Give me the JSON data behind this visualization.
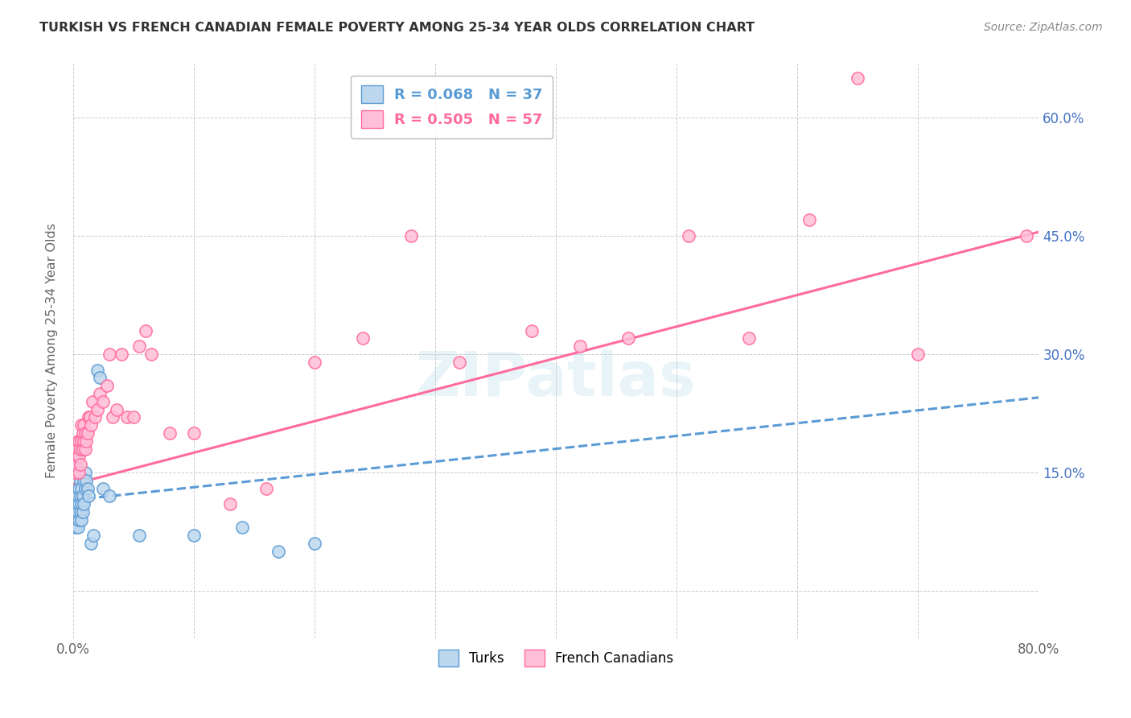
{
  "title": "TURKISH VS FRENCH CANADIAN FEMALE POVERTY AMONG 25-34 YEAR OLDS CORRELATION CHART",
  "source": "Source: ZipAtlas.com",
  "ylabel": "Female Poverty Among 25-34 Year Olds",
  "xmin": 0.0,
  "xmax": 0.8,
  "ymin": -0.06,
  "ymax": 0.67,
  "xticks": [
    0.0,
    0.1,
    0.2,
    0.3,
    0.4,
    0.5,
    0.6,
    0.7,
    0.8
  ],
  "xtick_labels": [
    "0.0%",
    "",
    "",
    "",
    "",
    "",
    "",
    "",
    "80.0%"
  ],
  "yticks": [
    0.0,
    0.15,
    0.3,
    0.45,
    0.6
  ],
  "right_ytick_labels": [
    "",
    "15.0%",
    "30.0%",
    "45.0%",
    "60.0%"
  ],
  "turks_R": 0.068,
  "turks_N": 37,
  "french_R": 0.505,
  "french_N": 57,
  "turk_color": "#5B9BD5",
  "turk_fill": "#BDD7EE",
  "french_color": "#FF6B9D",
  "french_fill": "#FFBFD8",
  "watermark": "ZIPatlas",
  "turk_line_x0": 0.0,
  "turk_line_y0": 0.115,
  "turk_line_x1": 0.8,
  "turk_line_y1": 0.245,
  "french_line_x0": 0.0,
  "french_line_y0": 0.135,
  "french_line_x1": 0.8,
  "french_line_y1": 0.455,
  "turks_x": [
    0.001,
    0.002,
    0.002,
    0.003,
    0.003,
    0.004,
    0.004,
    0.004,
    0.005,
    0.005,
    0.005,
    0.006,
    0.006,
    0.006,
    0.007,
    0.007,
    0.007,
    0.008,
    0.008,
    0.009,
    0.009,
    0.01,
    0.01,
    0.011,
    0.012,
    0.013,
    0.015,
    0.017,
    0.02,
    0.022,
    0.025,
    0.03,
    0.055,
    0.1,
    0.14,
    0.17,
    0.2
  ],
  "turks_y": [
    0.1,
    0.09,
    0.08,
    0.11,
    0.1,
    0.08,
    0.1,
    0.12,
    0.09,
    0.11,
    0.13,
    0.1,
    0.12,
    0.14,
    0.09,
    0.11,
    0.13,
    0.1,
    0.12,
    0.11,
    0.14,
    0.13,
    0.15,
    0.14,
    0.13,
    0.12,
    0.06,
    0.07,
    0.28,
    0.27,
    0.13,
    0.12,
    0.07,
    0.07,
    0.08,
    0.05,
    0.06
  ],
  "french_x": [
    0.001,
    0.002,
    0.002,
    0.003,
    0.003,
    0.004,
    0.004,
    0.005,
    0.005,
    0.005,
    0.006,
    0.006,
    0.007,
    0.007,
    0.008,
    0.008,
    0.009,
    0.009,
    0.01,
    0.01,
    0.011,
    0.012,
    0.013,
    0.014,
    0.015,
    0.016,
    0.018,
    0.02,
    0.022,
    0.025,
    0.028,
    0.03,
    0.033,
    0.036,
    0.04,
    0.045,
    0.05,
    0.055,
    0.06,
    0.065,
    0.08,
    0.1,
    0.13,
    0.16,
    0.2,
    0.24,
    0.28,
    0.32,
    0.38,
    0.42,
    0.46,
    0.51,
    0.56,
    0.61,
    0.65,
    0.7,
    0.79
  ],
  "french_y": [
    0.15,
    0.16,
    0.17,
    0.16,
    0.18,
    0.17,
    0.19,
    0.15,
    0.17,
    0.19,
    0.16,
    0.18,
    0.19,
    0.21,
    0.18,
    0.2,
    0.19,
    0.21,
    0.18,
    0.2,
    0.19,
    0.2,
    0.22,
    0.22,
    0.21,
    0.24,
    0.22,
    0.23,
    0.25,
    0.24,
    0.26,
    0.3,
    0.22,
    0.23,
    0.3,
    0.22,
    0.22,
    0.31,
    0.33,
    0.3,
    0.2,
    0.2,
    0.11,
    0.13,
    0.29,
    0.32,
    0.45,
    0.29,
    0.33,
    0.31,
    0.32,
    0.45,
    0.32,
    0.47,
    0.65,
    0.3,
    0.45
  ]
}
